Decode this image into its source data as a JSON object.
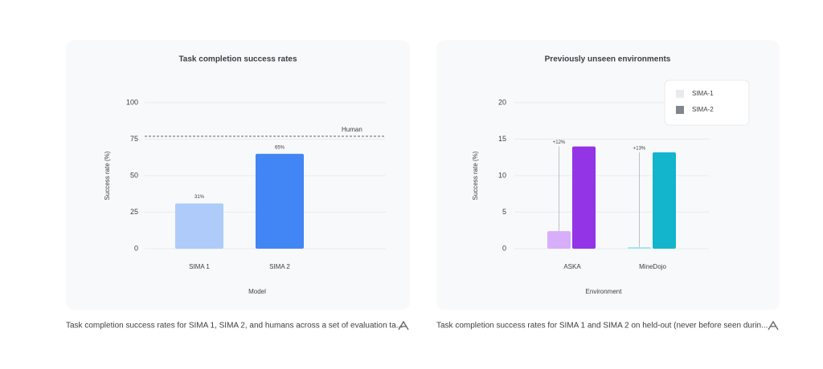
{
  "chart_data": [
    {
      "type": "bar",
      "title": "Task completion success rates",
      "x_label": "Model",
      "y_label": "Success rate (%)",
      "categories": [
        "SIMA 1",
        "SIMA 2"
      ],
      "values": [
        31,
        65
      ],
      "value_labels": [
        "31%",
        "65%"
      ],
      "colors": [
        "#aecbfa",
        "#4285f4"
      ],
      "ylim": [
        0,
        100
      ],
      "yticks": [
        0,
        25,
        50,
        75,
        100
      ],
      "grid": true,
      "reference_line": {
        "label": "Human",
        "value": 77
      }
    },
    {
      "type": "grouped_bar",
      "title": "Previously unseen environments",
      "x_label": "Environment",
      "y_label": "Success rate (%)",
      "categories": [
        "ASKA",
        "MineDojo"
      ],
      "series": [
        {
          "name": "SIMA-1",
          "color": "#e8eaed",
          "bar_colors": [
            "#d7aefb",
            "#a1e4f0"
          ],
          "values": [
            2.4,
            0.2
          ]
        },
        {
          "name": "SIMA-2",
          "color": "#80868b",
          "bar_colors": [
            "#9334e6",
            "#12b5cb"
          ],
          "values": [
            14,
            13.2
          ]
        }
      ],
      "annotations": [
        "+12%",
        "+13%"
      ],
      "ylim": [
        0,
        20
      ],
      "yticks": [
        0,
        5,
        10,
        15,
        20
      ],
      "grid": true,
      "legend": "upper right"
    }
  ],
  "captions": [
    "Task completion success rates for SIMA 1, SIMA 2, and humans across a set of evaluation ta...",
    "Task completion success rates for SIMA 1 and SIMA 2 on held-out (never before seen durin..."
  ]
}
